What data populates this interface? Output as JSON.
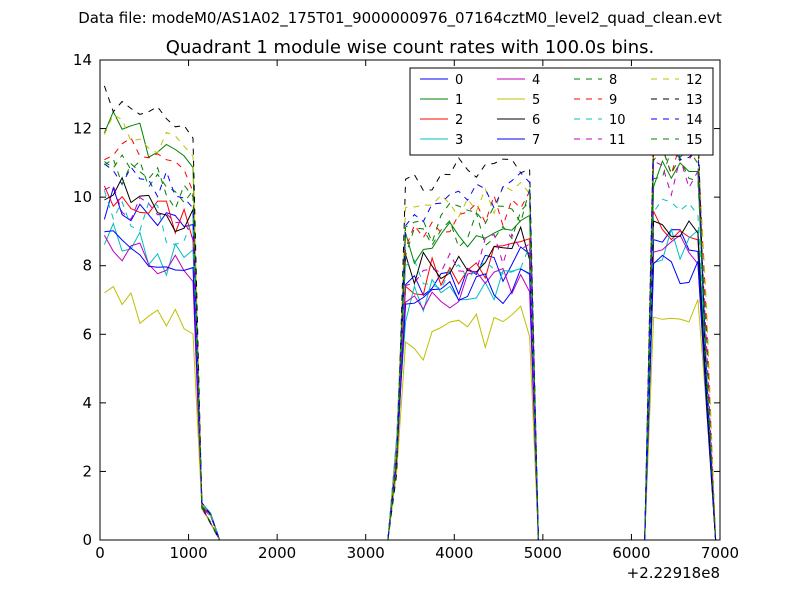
{
  "chart_data": {
    "type": "line",
    "suptitle": "Data file: modeM0/AS1A02_175T01_9000000976_07164cztM0_level2_quad_clean.evt",
    "title": "Quadrant 1 module wise count rates with 100.0s bins.",
    "xlabel": "",
    "ylabel": "",
    "x_offset_label": "+2.22918e8",
    "xlim": [
      0,
      7000
    ],
    "ylim": [
      0,
      14
    ],
    "xticks": [
      0,
      1000,
      2000,
      3000,
      4000,
      5000,
      6000,
      7000
    ],
    "yticks": [
      0,
      2,
      4,
      6,
      8,
      10,
      12,
      14
    ],
    "legend_position": "top-right",
    "legend_columns": 4,
    "x": [
      50,
      150,
      250,
      350,
      450,
      550,
      650,
      750,
      850,
      950,
      1050,
      1150,
      1250,
      1350,
      1450,
      1550,
      1650,
      1750,
      1850,
      1950,
      2050,
      2150,
      2250,
      2350,
      2450,
      2550,
      2650,
      2750,
      2850,
      2950,
      3050,
      3150,
      3250,
      3350,
      3450,
      3550,
      3650,
      3750,
      3850,
      3950,
      4050,
      4150,
      4250,
      4350,
      4450,
      4550,
      4650,
      4750,
      4850,
      4950,
      5050,
      5150,
      5250,
      5350,
      5450,
      5550,
      5650,
      5750,
      5850,
      5950,
      6050,
      6150,
      6250,
      6350,
      6450,
      6550,
      6650,
      6750,
      6850,
      6950
    ],
    "segments": {
      "orbit1": {
        "start": 0,
        "len": 11
      },
      "orbit2": {
        "start": 34,
        "len": 15
      },
      "orbit3": {
        "start": 62,
        "len": 7
      }
    },
    "falloff": {
      "after_orbit1": [
        1.0,
        0.7
      ],
      "before_orbit2": [
        2.5
      ],
      "after_orbit3_end": 0.4
    },
    "series": [
      {
        "name": "0",
        "color": "#0000ff",
        "dash": "solid",
        "levels": [
          9.3,
          7.6,
          8.6
        ]
      },
      {
        "name": "1",
        "color": "#008000",
        "dash": "solid",
        "levels": [
          11.5,
          8.8,
          10.6
        ]
      },
      {
        "name": "2",
        "color": "#ff0000",
        "dash": "solid",
        "levels": [
          9.5,
          7.8,
          9.3
        ]
      },
      {
        "name": "3",
        "color": "#00bfbf",
        "dash": "solid",
        "levels": [
          8.3,
          7.2,
          8.6
        ]
      },
      {
        "name": "4",
        "color": "#bf00bf",
        "dash": "solid",
        "levels": [
          8.0,
          7.1,
          8.4
        ]
      },
      {
        "name": "5",
        "color": "#bfbf00",
        "dash": "solid",
        "levels": [
          6.6,
          5.9,
          6.9
        ]
      },
      {
        "name": "6",
        "color": "#000000",
        "dash": "solid",
        "levels": [
          9.6,
          8.1,
          9.4
        ]
      },
      {
        "name": "7",
        "color": "#0000ff",
        "dash": "solid",
        "levels": [
          8.0,
          7.0,
          7.8
        ]
      },
      {
        "name": "8",
        "color": "#008000",
        "dash": "dashed",
        "levels": [
          10.4,
          8.9,
          10.9
        ]
      },
      {
        "name": "9",
        "color": "#ff0000",
        "dash": "dashed",
        "levels": [
          10.9,
          9.3,
          11.1
        ]
      },
      {
        "name": "10",
        "color": "#00bfbf",
        "dash": "dashed",
        "levels": [
          9.2,
          7.9,
          9.6
        ]
      },
      {
        "name": "11",
        "color": "#bf00bf",
        "dash": "dashed",
        "levels": [
          9.5,
          8.2,
          10.6
        ]
      },
      {
        "name": "12",
        "color": "#bfbf00",
        "dash": "dashed",
        "levels": [
          11.5,
          9.6,
          11.9
        ]
      },
      {
        "name": "13",
        "color": "#000000",
        "dash": "dashed",
        "levels": [
          12.3,
          10.6,
          12.2
        ]
      },
      {
        "name": "14",
        "color": "#0000ff",
        "dash": "dashed",
        "levels": [
          10.4,
          9.8,
          11.6
        ]
      },
      {
        "name": "15",
        "color": "#008000",
        "dash": "dashed",
        "levels": [
          10.3,
          9.3,
          10.9
        ]
      }
    ]
  }
}
